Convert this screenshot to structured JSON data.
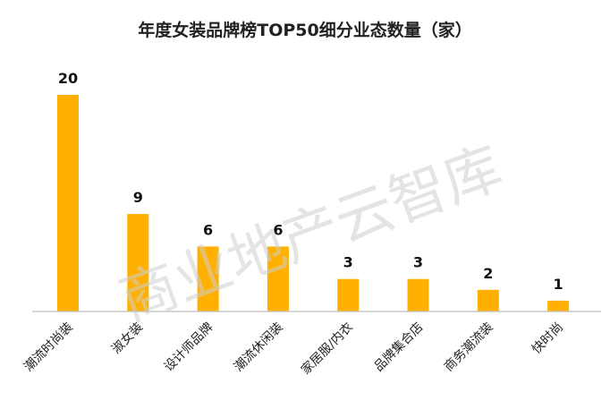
{
  "chart_data": {
    "type": "bar",
    "title": "年度女装品牌榜TOP50细分业态数量（家）",
    "categories": [
      "潮流时尚装",
      "淑女装",
      "设计师品牌",
      "潮流休闲装",
      "家居服/内衣",
      "品牌集合店",
      "商务潮流装",
      "快时尚"
    ],
    "values": [
      20,
      9,
      6,
      6,
      3,
      3,
      2,
      1
    ],
    "xlabel": "",
    "ylabel": "",
    "ylim": [
      0,
      20
    ],
    "grid": false,
    "legend": "none",
    "bar_color": "#FFB000",
    "axis_color": "#BFBFBF"
  },
  "watermark": "商业地产云智库"
}
